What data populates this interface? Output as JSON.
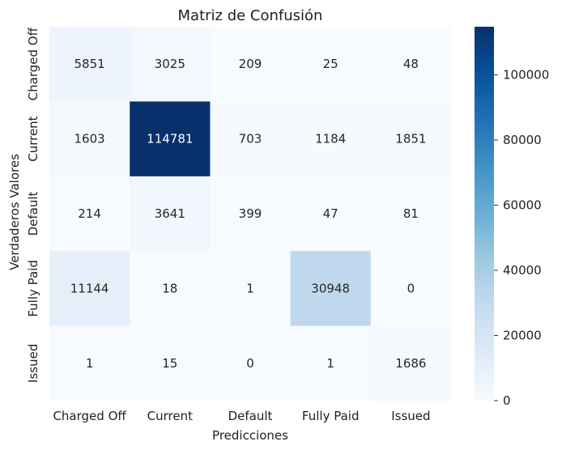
{
  "chart_data": {
    "type": "heatmap",
    "title": "Matriz de Confusión",
    "xlabel": "Predicciones",
    "ylabel": "Verdaderos Valores",
    "x_categories": [
      "Charged Off",
      "Current",
      "Default",
      "Fully Paid",
      "Issued"
    ],
    "y_categories": [
      "Charged Off",
      "Current",
      "Default",
      "Fully Paid",
      "Issued"
    ],
    "values": [
      [
        5851,
        3025,
        209,
        25,
        48
      ],
      [
        1603,
        114781,
        703,
        1184,
        1851
      ],
      [
        214,
        3641,
        399,
        47,
        81
      ],
      [
        11144,
        18,
        1,
        30948,
        0
      ],
      [
        1,
        15,
        0,
        1,
        1686
      ]
    ],
    "colorscale": "Blues",
    "colorbar": {
      "range": [
        0,
        114781
      ],
      "ticks": [
        0,
        20000,
        40000,
        60000,
        80000,
        100000
      ]
    },
    "grid": false
  }
}
